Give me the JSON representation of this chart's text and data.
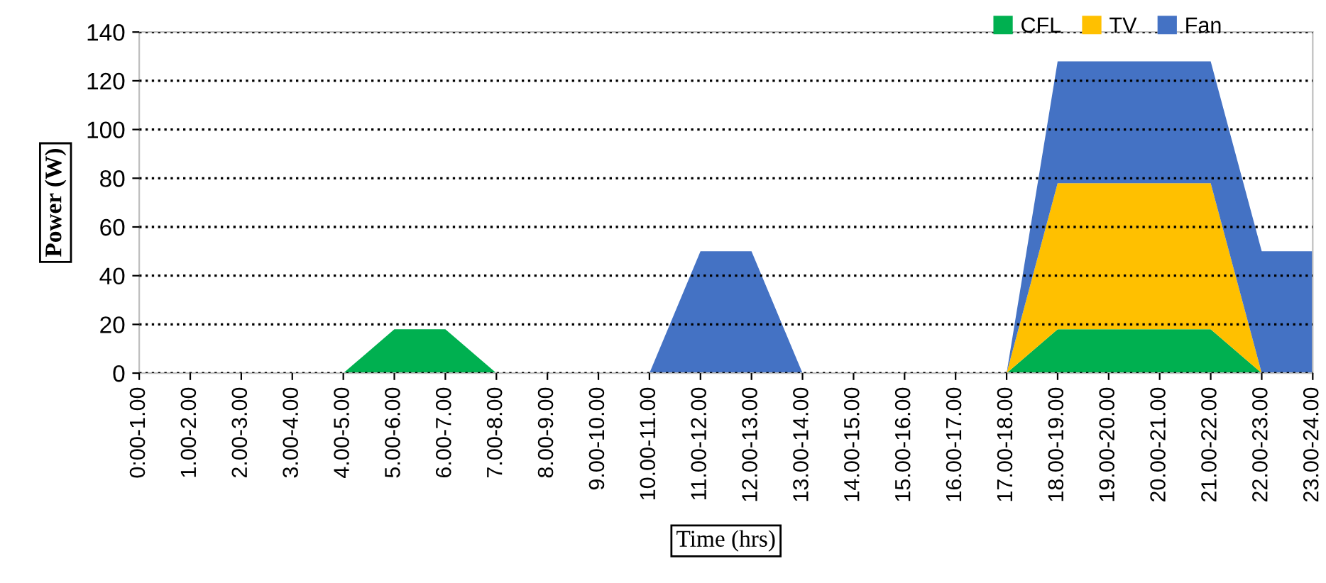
{
  "chart_data": {
    "type": "area",
    "stacked": true,
    "xlabel": "Time (hrs)",
    "ylabel": "Power (W)",
    "categories": [
      "0:00-1.00",
      "1.00-2.00",
      "2.00-3.00",
      "3.00-4.00",
      "4.00-5.00",
      "5.00-6.00",
      "6.00-7.00",
      "7.00-8.00",
      "8.00-9.00",
      "9.00-10.00",
      "10.00-11.00",
      "11.00-12.00",
      "12.00-13.00",
      "13.00-14.00",
      "14.00-15.00",
      "15.00-16.00",
      "16.00-17.00",
      "17.00-18.00",
      "18.00-19.00",
      "19.00-20.00",
      "20.00-21.00",
      "21.00-22.00",
      "22.00-23.00",
      "23.00-24.00"
    ],
    "series": [
      {
        "name": "CFL",
        "color": "#00b050",
        "values": [
          0,
          0,
          0,
          0,
          0,
          18,
          18,
          0,
          0,
          0,
          0,
          0,
          0,
          0,
          0,
          0,
          0,
          0,
          18,
          18,
          18,
          18,
          0,
          0
        ]
      },
      {
        "name": "TV",
        "color": "#ffc000",
        "values": [
          0,
          0,
          0,
          0,
          0,
          0,
          0,
          0,
          0,
          0,
          0,
          0,
          0,
          0,
          0,
          0,
          0,
          0,
          60,
          60,
          60,
          60,
          0,
          0
        ]
      },
      {
        "name": "Fan",
        "color": "#4472c4",
        "values": [
          0,
          0,
          0,
          0,
          0,
          0,
          0,
          0,
          0,
          0,
          0,
          50,
          50,
          0,
          0,
          0,
          0,
          0,
          50,
          50,
          50,
          50,
          50,
          50
        ]
      }
    ],
    "ylim": [
      0,
      140
    ],
    "yticks": [
      0,
      20,
      40,
      60,
      80,
      100,
      120,
      140
    ],
    "grid": "y",
    "legend": "top right"
  }
}
